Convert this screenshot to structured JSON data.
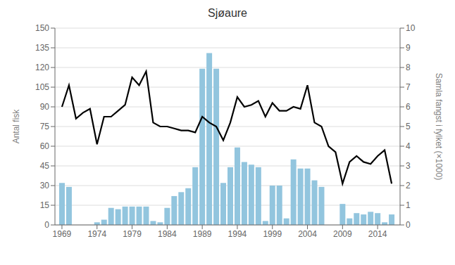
{
  "chart_data": {
    "type": "bar",
    "title": "Sjøaure",
    "ylabel": "Antal fisk",
    "y2label": "Samla fangst i fylket (×1000)",
    "x": [
      1969,
      1970,
      1971,
      1972,
      1973,
      1974,
      1975,
      1976,
      1977,
      1978,
      1979,
      1980,
      1981,
      1982,
      1983,
      1984,
      1985,
      1986,
      1987,
      1988,
      1989,
      1990,
      1991,
      1992,
      1993,
      1994,
      1995,
      1996,
      1997,
      1998,
      1999,
      2000,
      2001,
      2002,
      2003,
      2004,
      2005,
      2006,
      2007,
      2008,
      2009,
      2010,
      2011,
      2012,
      2013,
      2014,
      2015,
      2016
    ],
    "series": [
      {
        "type": "bar",
        "color": "#92C5DE",
        "values": [
          32,
          29,
          0,
          0,
          0,
          2,
          4,
          13,
          12,
          14,
          14,
          14,
          14,
          3,
          2,
          13,
          22,
          25,
          28,
          44,
          119,
          131,
          119,
          32,
          44,
          59,
          48,
          46,
          44,
          3,
          30,
          30,
          5,
          50,
          43,
          43,
          34,
          29,
          0,
          0,
          16,
          5,
          9,
          8,
          10,
          9,
          2,
          8
        ]
      },
      {
        "type": "line",
        "axis": "y2",
        "color": "#000000",
        "values": [
          6.0,
          7.1,
          5.4,
          5.7,
          5.9,
          4.1,
          5.5,
          5.5,
          5.8,
          6.1,
          7.5,
          7.1,
          7.8,
          5.2,
          5.0,
          5.0,
          4.9,
          4.8,
          4.8,
          4.7,
          5.5,
          5.2,
          5.0,
          4.3,
          5.2,
          6.5,
          6.0,
          6.1,
          6.3,
          5.5,
          6.2,
          5.8,
          5.8,
          6.0,
          5.9,
          7.1,
          5.2,
          5.0,
          4.0,
          3.7,
          2.1,
          3.2,
          3.5,
          3.2,
          3.1,
          3.5,
          3.8,
          2.1
        ]
      }
    ],
    "xlim": [
      1968.0,
      2017.2
    ],
    "xticks": [
      1969,
      1974,
      1979,
      1984,
      1989,
      1994,
      1999,
      2004,
      2009,
      2014
    ],
    "ylim": [
      0,
      150
    ],
    "yticks": [
      0,
      15,
      30,
      45,
      60,
      75,
      90,
      105,
      120,
      135,
      150
    ],
    "y2lim": [
      0,
      10
    ],
    "y2ticks": [
      0,
      1,
      2,
      3,
      4,
      5,
      6,
      7,
      8,
      9,
      10
    ],
    "grid": true
  }
}
